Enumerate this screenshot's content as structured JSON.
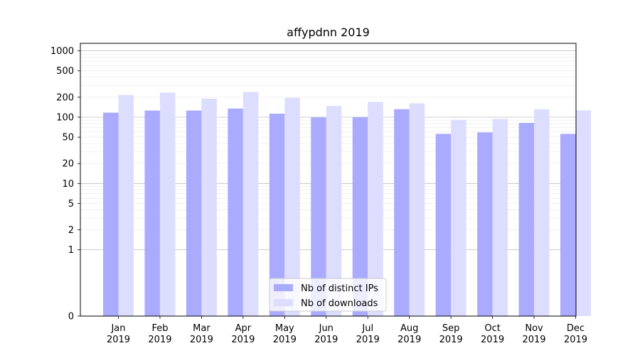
{
  "chart_data": {
    "type": "bar",
    "title": "affypdnn 2019",
    "xlabel": "",
    "ylabel": "",
    "yscale": "symlog",
    "ylim": [
      0,
      1300
    ],
    "yticks": [
      0,
      1,
      2,
      5,
      10,
      20,
      50,
      100,
      200,
      500,
      1000
    ],
    "grid": true,
    "legend_position": "bottom-center",
    "categories": [
      [
        "Jan",
        "2019"
      ],
      [
        "Feb",
        "2019"
      ],
      [
        "Mar",
        "2019"
      ],
      [
        "Apr",
        "2019"
      ],
      [
        "May",
        "2019"
      ],
      [
        "Jun",
        "2019"
      ],
      [
        "Jul",
        "2019"
      ],
      [
        "Aug",
        "2019"
      ],
      [
        "Sep",
        "2019"
      ],
      [
        "Oct",
        "2019"
      ],
      [
        "Nov",
        "2019"
      ],
      [
        "Dec",
        "2019"
      ]
    ],
    "series": [
      {
        "name": "Nb of distinct IPs",
        "color": "#aaaaff",
        "values": [
          117,
          126,
          126,
          135,
          113,
          99,
          100,
          132,
          56,
          59,
          82,
          56
        ]
      },
      {
        "name": "Nb of downloads",
        "color": "#ddddff",
        "values": [
          216,
          235,
          190,
          240,
          196,
          148,
          170,
          162,
          91,
          94,
          132,
          127
        ]
      }
    ]
  }
}
